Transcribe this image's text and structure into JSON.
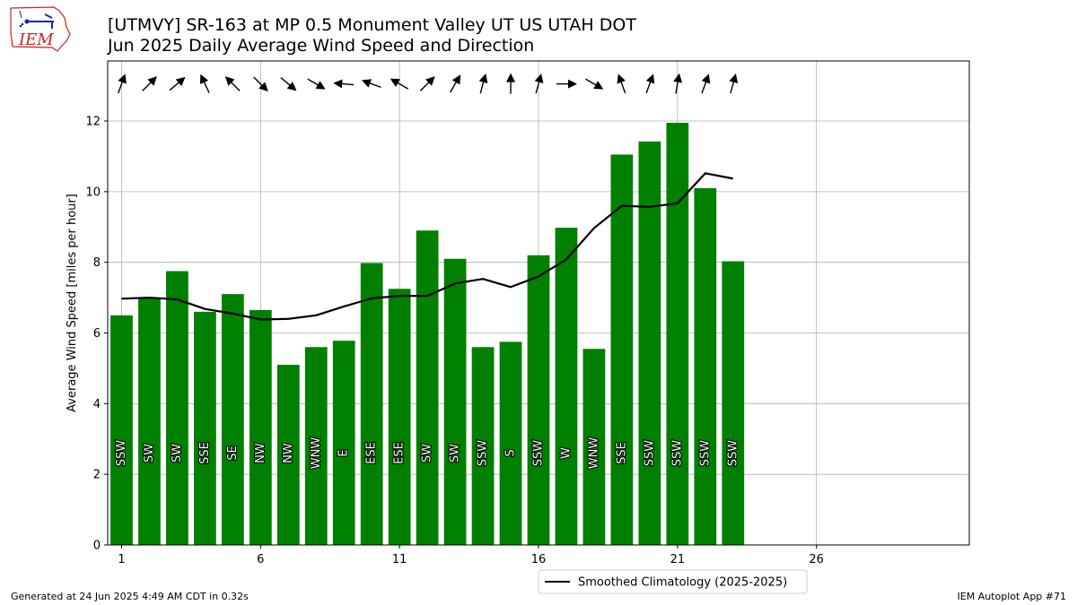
{
  "header": {
    "title_line1": "[UTMVY] SR-163 at MP 0.5 Monument Valley UT US UTAH DOT",
    "title_line2": "Jun 2025 Daily Average Wind Speed and Direction",
    "logo_text": "IEM"
  },
  "footer": {
    "generated": "Generated at 24 Jun 2025 4:49 AM CDT in 0.32s",
    "app": "IEM Autoplot App #71"
  },
  "colors": {
    "bar": "#008000",
    "climo_line": "#000000",
    "grid": "#b0b0b0",
    "logo": "#cc2222"
  },
  "chart_data": {
    "type": "bar",
    "ylabel": "Average Wind Speed [miles per hour]",
    "xlabel": "",
    "xlim": [
      0.5,
      31.5
    ],
    "ylim": [
      0,
      13.7
    ],
    "xticks": [
      1,
      6,
      11,
      16,
      21,
      26
    ],
    "yticks": [
      0,
      2,
      4,
      6,
      8,
      10,
      12
    ],
    "grid": true,
    "legend_position": "bottom-center",
    "days": [
      1,
      2,
      3,
      4,
      5,
      6,
      7,
      8,
      9,
      10,
      11,
      12,
      13,
      14,
      15,
      16,
      17,
      18,
      19,
      20,
      21,
      22,
      23
    ],
    "series": [
      {
        "name": "Daily Average Wind Speed",
        "type": "bar",
        "values": [
          6.5,
          7.0,
          7.75,
          6.6,
          7.1,
          6.65,
          5.1,
          5.6,
          5.78,
          7.98,
          7.25,
          8.9,
          8.1,
          5.6,
          5.75,
          8.2,
          8.98,
          5.55,
          11.05,
          11.42,
          11.95,
          10.1,
          8.03
        ],
        "direction_labels": [
          "SSW",
          "SW",
          "SW",
          "SSE",
          "SE",
          "NW",
          "NW",
          "WNW",
          "E",
          "ESE",
          "ESE",
          "SW",
          "SW",
          "SSW",
          "S",
          "SSW",
          "W",
          "WNW",
          "SSE",
          "SSW",
          "SSW",
          "SSW",
          "SSW"
        ],
        "direction_degrees": [
          200,
          225,
          230,
          155,
          135,
          315,
          310,
          300,
          95,
          110,
          120,
          225,
          210,
          195,
          180,
          195,
          270,
          300,
          160,
          200,
          190,
          200,
          195
        ]
      },
      {
        "name": "Smoothed Climatology (2025-2025)",
        "type": "line",
        "values": [
          6.97,
          7.0,
          6.95,
          6.68,
          6.55,
          6.38,
          6.4,
          6.5,
          6.75,
          6.98,
          7.05,
          7.05,
          7.4,
          7.53,
          7.3,
          7.6,
          8.08,
          8.97,
          9.6,
          9.57,
          9.67,
          10.52,
          10.37
        ]
      }
    ]
  }
}
